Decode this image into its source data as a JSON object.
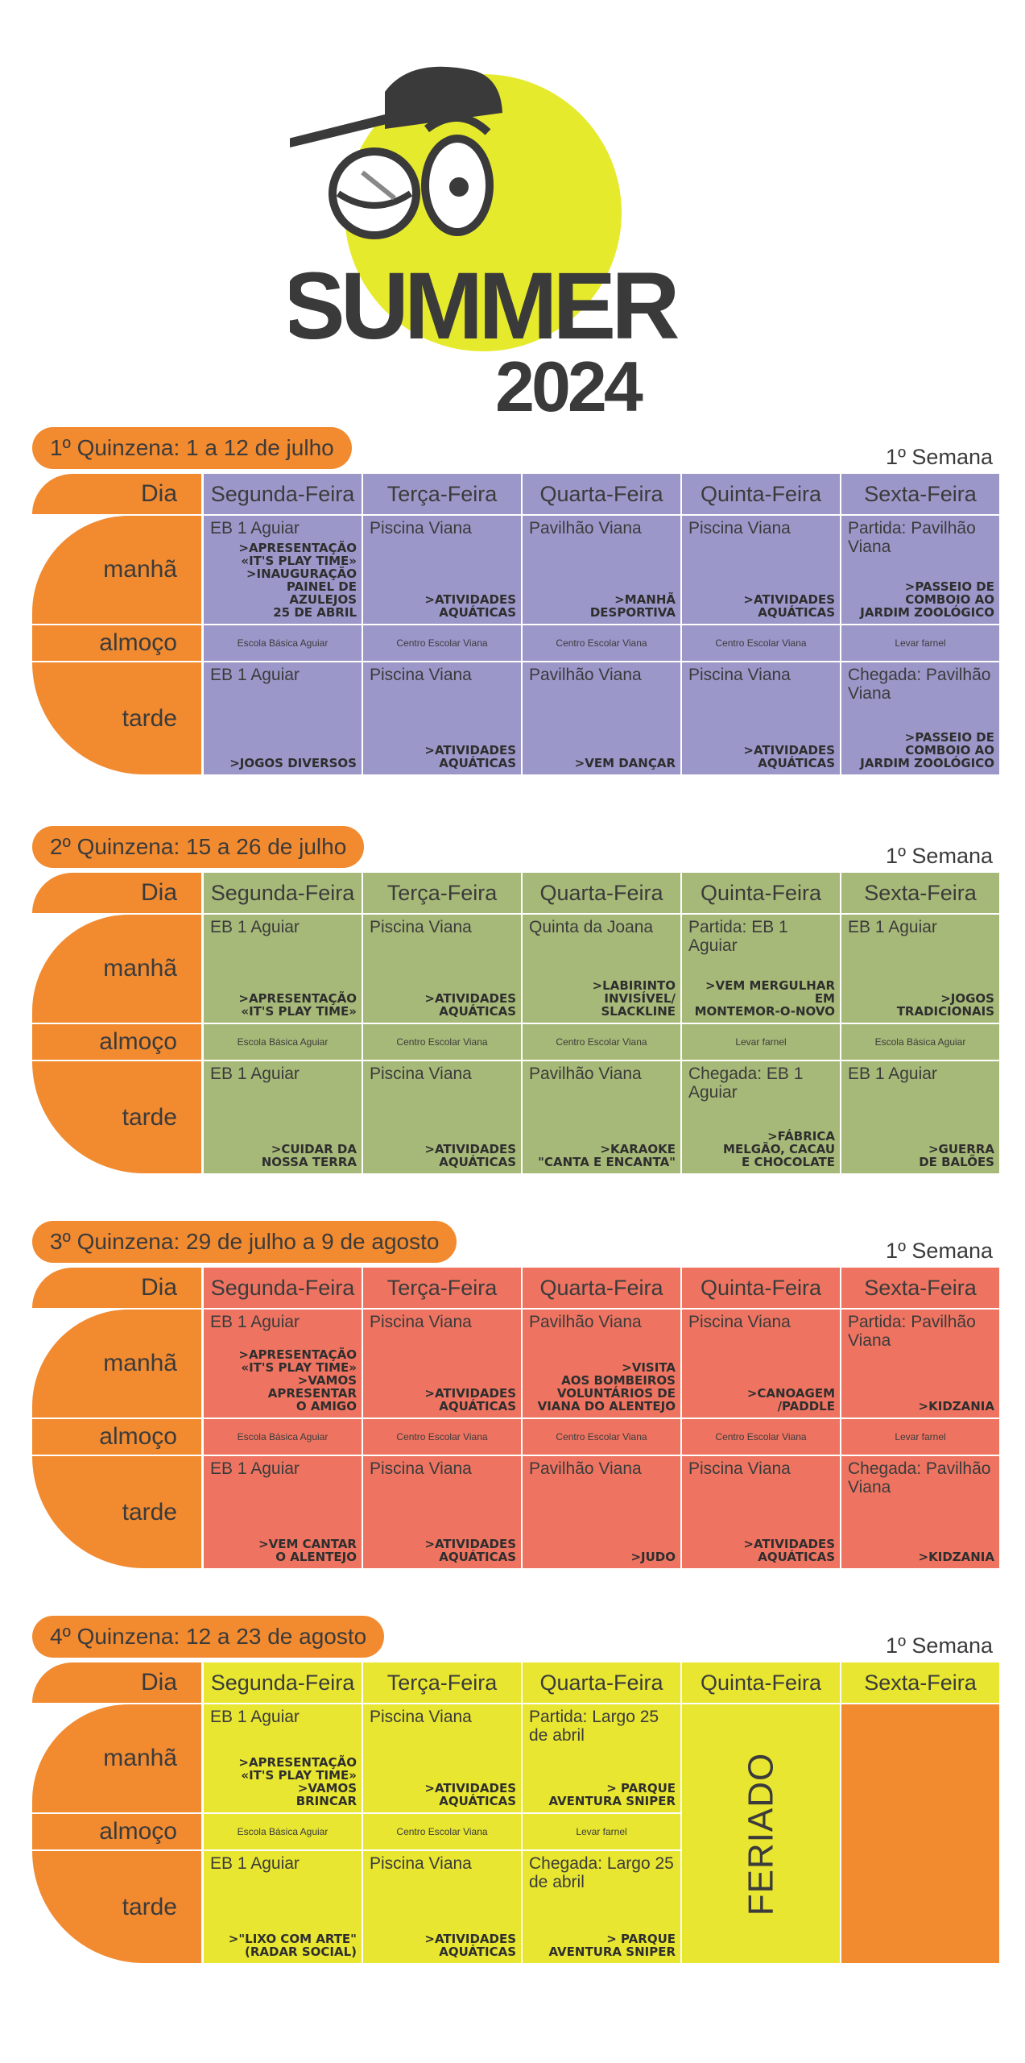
{
  "logo": {
    "title": "SUMMER",
    "year": "2024"
  },
  "labels": {
    "dia": "Dia",
    "manha": "manhã",
    "almoco": "almoço",
    "tarde": "tarde"
  },
  "days": [
    "Segunda-Feira",
    "Terça-Feira",
    "Quarta-Feira",
    "Quinta-Feira",
    "Sexta-Feira"
  ],
  "sections": [
    {
      "title": "1º Quinzena: 1 a 12 de julho",
      "semana": "1º Semana",
      "color": "#9b97c9",
      "manha": [
        {
          "top": "EB 1 Aguiar",
          "bottom": ">APRESENTAÇÃO\n«IT'S PLAY TIME»\n>INAUGURAÇÃO\nPAINEL DE\nAZULEJOS\n25 DE ABRIL"
        },
        {
          "top": "Piscina Viana",
          "bottom": ">ATIVIDADES\nAQUÁTICAS"
        },
        {
          "top": "Pavilhão Viana",
          "bottom": ">MANHÃ\nDESPORTIVA"
        },
        {
          "top": "Piscina Viana",
          "bottom": ">ATIVIDADES\nAQUÁTICAS"
        },
        {
          "top": "Partida: Pavilhão Viana",
          "bottom": ">PASSEIO DE\nCOMBOIO AO\nJARDIM ZOOLÓGICO"
        }
      ],
      "almoco": [
        "Escola Básica Aguiar",
        "Centro Escolar Viana",
        "Centro Escolar Viana",
        "Centro Escolar Viana",
        "Levar farnel"
      ],
      "tarde": [
        {
          "top": "EB 1 Aguiar",
          "bottom": ">JOGOS DIVERSOS"
        },
        {
          "top": "Piscina Viana",
          "bottom": ">ATIVIDADES\nAQUÁTICAS"
        },
        {
          "top": "Pavilhão Viana",
          "bottom": ">VEM DANÇAR"
        },
        {
          "top": "Piscina Viana",
          "bottom": ">ATIVIDADES\nAQUÁTICAS"
        },
        {
          "top": "Chegada: Pavilhão Viana",
          "bottom": ">PASSEIO DE\nCOMBOIO AO\nJARDIM ZOOLÓGICO"
        }
      ]
    },
    {
      "title": "2º Quinzena: 15 a 26 de julho",
      "semana": "1º Semana",
      "color": "#a7b978",
      "manha": [
        {
          "top": "EB 1 Aguiar",
          "bottom": ">APRESENTAÇÃO\n«IT'S PLAY TIME»"
        },
        {
          "top": "Piscina Viana",
          "bottom": ">ATIVIDADES\nAQUÁTICAS"
        },
        {
          "top": "Quinta da Joana",
          "bottom": ">LABIRINTO\nINVISÍVEL/\nSLACKLINE"
        },
        {
          "top": "Partida: EB 1 Aguiar",
          "bottom": ">VEM MERGULHAR\nEM\nMONTEMOR-O-NOVO"
        },
        {
          "top": "EB 1 Aguiar",
          "bottom": ">JOGOS\nTRADICIONAIS"
        }
      ],
      "almoco": [
        "Escola Básica Aguiar",
        "Centro Escolar Viana",
        "Centro Escolar Viana",
        "Levar farnel",
        "Escola Básica Aguiar"
      ],
      "tarde": [
        {
          "top": "EB 1 Aguiar",
          "bottom": ">CUIDAR DA\nNOSSA TERRA"
        },
        {
          "top": "Piscina Viana",
          "bottom": ">ATIVIDADES\nAQUÁTICAS"
        },
        {
          "top": "Pavilhão Viana",
          "bottom": ">KARAOKE\n\"CANTA E ENCANTA\""
        },
        {
          "top": "Chegada: EB 1 Aguiar",
          "bottom": ">FÁBRICA\nMELGÃO, CACAU\nE CHOCOLATE"
        },
        {
          "top": "EB 1 Aguiar",
          "bottom": ">GUERRA\nDE BALÕES"
        }
      ]
    },
    {
      "title": "3º Quinzena: 29 de julho a 9 de agosto",
      "semana": "1º Semana",
      "color": "#ee7461",
      "manha": [
        {
          "top": "EB 1 Aguiar",
          "bottom": ">APRESENTAÇÃO\n«IT'S PLAY TIME»\n>VAMOS\nAPRESENTAR\nO AMIGO"
        },
        {
          "top": "Piscina Viana",
          "bottom": ">ATIVIDADES\nAQUÁTICAS"
        },
        {
          "top": "Pavilhão Viana",
          "bottom": ">VISITA\nAOS BOMBEIROS\nVOLUNTÁRIOS DE\nVIANA DO ALENTEJO"
        },
        {
          "top": "Piscina Viana",
          "bottom": ">CANOAGEM\n/PADDLE"
        },
        {
          "top": "Partida: Pavilhão Viana",
          "bottom": ">KIDZANIA"
        }
      ],
      "almoco": [
        "Escola Básica Aguiar",
        "Centro Escolar Viana",
        "Centro Escolar Viana",
        "Centro Escolar Viana",
        "Levar farnel"
      ],
      "tarde": [
        {
          "top": "EB 1 Aguiar",
          "bottom": ">VEM CANTAR\nO ALENTEJO"
        },
        {
          "top": "Piscina Viana",
          "bottom": ">ATIVIDADES\nAQUÁTICAS"
        },
        {
          "top": "Pavilhão Viana",
          "bottom": ">JUDO"
        },
        {
          "top": "Piscina Viana",
          "bottom": ">ATIVIDADES\nAQUÁTICAS"
        },
        {
          "top": "Chegada: Pavilhão Viana",
          "bottom": ">KIDZANIA"
        }
      ]
    },
    {
      "title": "4º Quinzena: 12 a 23 de agosto",
      "semana": "1º Semana",
      "color": "#e8e630",
      "manha": [
        {
          "top": "EB 1 Aguiar",
          "bottom": ">APRESENTAÇÃO\n«IT'S PLAY TIME»\n>VAMOS\nBRINCAR"
        },
        {
          "top": "Piscina Viana",
          "bottom": ">ATIVIDADES\nAQUÁTICAS"
        },
        {
          "top": "Partida: Largo 25 de abril",
          "bottom": "> PARQUE\nAVENTURA SNIPER"
        }
      ],
      "almoco": [
        "Escola Básica Aguiar",
        "Centro Escolar Viana",
        "Levar farnel"
      ],
      "tarde": [
        {
          "top": "EB 1 Aguiar",
          "bottom": ">\"LIXO COM ARTE\"\n(RADAR SOCIAL)"
        },
        {
          "top": "Piscina Viana",
          "bottom": ">ATIVIDADES\nAQUÁTICAS"
        },
        {
          "top": "Chegada: Largo 25 de abril",
          "bottom": "> PARQUE\nAVENTURA SNIPER"
        }
      ],
      "feriado": "FERIADO",
      "orange": "#f28a30"
    }
  ],
  "colors": {
    "orange": "#f28a30",
    "logo_yellow": "#e6ea2c"
  }
}
